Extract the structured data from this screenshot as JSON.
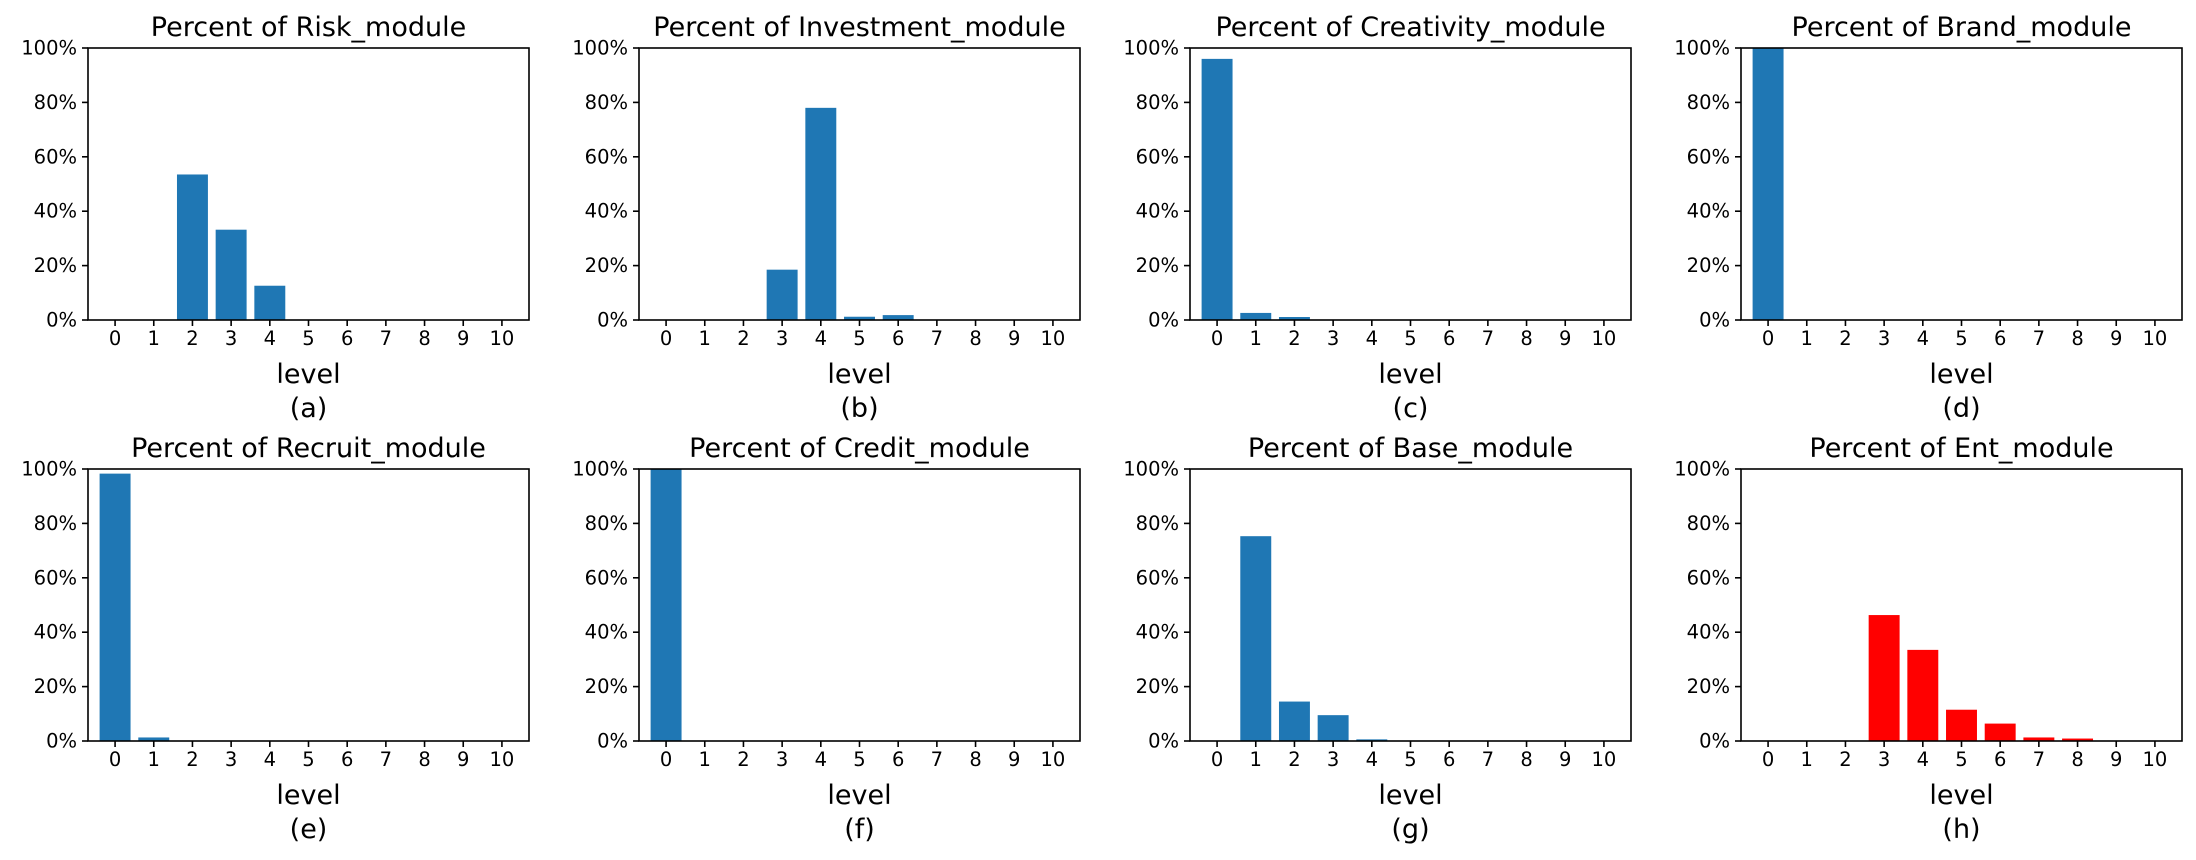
{
  "chart_data": [
    {
      "type": "bar",
      "title": "Percent of Risk_module",
      "xlabel": "level",
      "caption": "(a)",
      "categories": [
        "0",
        "1",
        "2",
        "3",
        "4",
        "5",
        "6",
        "7",
        "8",
        "9",
        "10"
      ],
      "values": [
        0,
        0,
        53.5,
        33.2,
        12.6,
        0,
        0,
        0,
        0,
        0,
        0
      ],
      "ylim": [
        0,
        100
      ],
      "yticks": [
        "0%",
        "20%",
        "40%",
        "60%",
        "80%",
        "100%"
      ],
      "color": "#1f77b4"
    },
    {
      "type": "bar",
      "title": "Percent of Investment_module",
      "xlabel": "level",
      "caption": "(b)",
      "categories": [
        "0",
        "1",
        "2",
        "3",
        "4",
        "5",
        "6",
        "7",
        "8",
        "9",
        "10"
      ],
      "values": [
        0,
        0,
        0,
        18.5,
        78,
        1.2,
        1.8,
        0,
        0,
        0,
        0
      ],
      "ylim": [
        0,
        100
      ],
      "yticks": [
        "0%",
        "20%",
        "40%",
        "60%",
        "80%",
        "100%"
      ],
      "color": "#1f77b4"
    },
    {
      "type": "bar",
      "title": "Percent of Creativity_module",
      "xlabel": "level",
      "caption": "(c)",
      "categories": [
        "0",
        "1",
        "2",
        "3",
        "4",
        "5",
        "6",
        "7",
        "8",
        "9",
        "10"
      ],
      "values": [
        96,
        2.6,
        1.1,
        0,
        0,
        0,
        0,
        0,
        0,
        0,
        0
      ],
      "ylim": [
        0,
        100
      ],
      "yticks": [
        "0%",
        "20%",
        "40%",
        "60%",
        "80%",
        "100%"
      ],
      "color": "#1f77b4"
    },
    {
      "type": "bar",
      "title": "Percent of Brand_module",
      "xlabel": "level",
      "caption": "(d)",
      "categories": [
        "0",
        "1",
        "2",
        "3",
        "4",
        "5",
        "6",
        "7",
        "8",
        "9",
        "10"
      ],
      "values": [
        100,
        0,
        0,
        0,
        0,
        0,
        0,
        0,
        0,
        0,
        0
      ],
      "ylim": [
        0,
        100
      ],
      "yticks": [
        "0%",
        "20%",
        "40%",
        "60%",
        "80%",
        "100%"
      ],
      "color": "#1f77b4"
    },
    {
      "type": "bar",
      "title": "Percent of Recruit_module",
      "xlabel": "level",
      "caption": "(e)",
      "categories": [
        "0",
        "1",
        "2",
        "3",
        "4",
        "5",
        "6",
        "7",
        "8",
        "9",
        "10"
      ],
      "values": [
        98.3,
        1.3,
        0,
        0,
        0,
        0,
        0,
        0,
        0,
        0,
        0
      ],
      "ylim": [
        0,
        100
      ],
      "yticks": [
        "0%",
        "20%",
        "40%",
        "60%",
        "80%",
        "100%"
      ],
      "color": "#1f77b4"
    },
    {
      "type": "bar",
      "title": "Percent of Credit_module",
      "xlabel": "level",
      "caption": "(f)",
      "categories": [
        "0",
        "1",
        "2",
        "3",
        "4",
        "5",
        "6",
        "7",
        "8",
        "9",
        "10"
      ],
      "values": [
        100,
        0,
        0,
        0,
        0,
        0,
        0,
        0,
        0,
        0,
        0
      ],
      "ylim": [
        0,
        100
      ],
      "yticks": [
        "0%",
        "20%",
        "40%",
        "60%",
        "80%",
        "100%"
      ],
      "color": "#1f77b4"
    },
    {
      "type": "bar",
      "title": "Percent of Base_module",
      "xlabel": "level",
      "caption": "(g)",
      "categories": [
        "0",
        "1",
        "2",
        "3",
        "4",
        "5",
        "6",
        "7",
        "8",
        "9",
        "10"
      ],
      "values": [
        0,
        75.3,
        14.5,
        9.5,
        0.6,
        0,
        0,
        0,
        0,
        0,
        0
      ],
      "ylim": [
        0,
        100
      ],
      "yticks": [
        "0%",
        "20%",
        "40%",
        "60%",
        "80%",
        "100%"
      ],
      "color": "#1f77b4"
    },
    {
      "type": "bar",
      "title": "Percent of Ent_module",
      "xlabel": "level",
      "caption": "(h)",
      "categories": [
        "0",
        "1",
        "2",
        "3",
        "4",
        "5",
        "6",
        "7",
        "8",
        "9",
        "10"
      ],
      "values": [
        0,
        0,
        0,
        46.3,
        33.5,
        11.5,
        6.4,
        1.3,
        0.9,
        0,
        0
      ],
      "ylim": [
        0,
        100
      ],
      "yticks": [
        "0%",
        "20%",
        "40%",
        "60%",
        "80%",
        "100%"
      ],
      "color": "#ff0000"
    }
  ]
}
